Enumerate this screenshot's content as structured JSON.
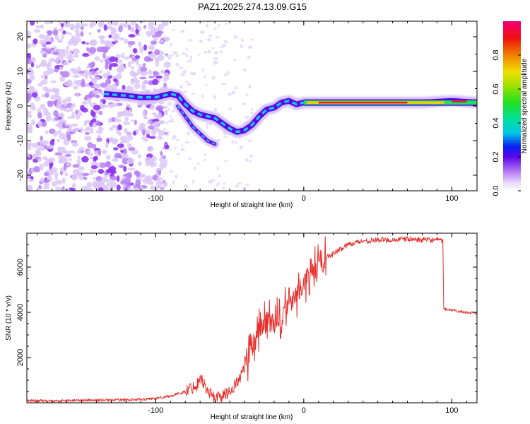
{
  "title": "PAZ1.2025.274.13.09.G15",
  "colors": {
    "snr_line": "#e8302c",
    "spectrogram_low": "#dcc8f8",
    "spectrogram_mid": "#7a16f0",
    "spectrogram_high": "#e8102a",
    "frame": "#000000"
  },
  "chart_data": [
    {
      "type": "heatmap",
      "name": "spectrogram",
      "xlabel": "Height of straight line (km)",
      "ylabel": "Frequency (Hz)",
      "xlim": [
        -187,
        117
      ],
      "ylim": [
        -24.5,
        24.5
      ],
      "xticks": [
        -100,
        0,
        100
      ],
      "xtick_labels": [
        "-100",
        "0",
        "100"
      ],
      "yticks": [
        -20,
        -10,
        0,
        10,
        20
      ],
      "ytick_labels": [
        "-20",
        "-10",
        "0",
        "10",
        "20"
      ],
      "ridge": {
        "x": [
          -135,
          -120,
          -110,
          -100,
          -90,
          -85,
          -80,
          -75,
          -70,
          -65,
          -60,
          -55,
          -50,
          -45,
          -40,
          -35,
          -30,
          -25,
          -20,
          -15,
          -10,
          -5,
          0,
          10,
          30,
          60,
          80,
          100,
          117
        ],
        "y": [
          3.5,
          3.0,
          2.5,
          2.5,
          3.5,
          3.0,
          0.5,
          -1.5,
          -2.5,
          -3.0,
          -3.5,
          -5.0,
          -6.5,
          -7.5,
          -7.0,
          -5.5,
          -3.0,
          -1.0,
          -0.5,
          1.0,
          1.5,
          0.5,
          1.0,
          1.0,
          1.0,
          1.0,
          1.0,
          1.5,
          1.0
        ]
      },
      "branch": {
        "x": [
          -85,
          -80,
          -75,
          -70,
          -65,
          -60
        ],
        "y": [
          0,
          -3,
          -6,
          -8,
          -10,
          -11
        ]
      },
      "colorbar": {
        "label": "Normalized spectral amplitude",
        "range": [
          0,
          1
        ],
        "ticks": [
          0.0,
          0.2,
          0.4,
          0.6,
          0.8
        ],
        "tick_labels": [
          "0.0",
          "0.2",
          "0.4",
          "0.6",
          "0.8"
        ]
      }
    },
    {
      "type": "line",
      "name": "snr",
      "xlabel": "Height of straight line (km)",
      "ylabel": "SNR (10 * v/v)",
      "xlim": [
        -187,
        117
      ],
      "ylim": [
        0,
        7500
      ],
      "xticks": [
        -100,
        0,
        100
      ],
      "xtick_labels": [
        "-100",
        "0",
        "100"
      ],
      "yticks": [
        2000,
        4000,
        6000
      ],
      "ytick_labels": [
        "2000",
        "4000",
        "6000"
      ],
      "series": [
        {
          "name": "SNR",
          "x": [
            -187,
            -170,
            -150,
            -130,
            -110,
            -100,
            -90,
            -80,
            -72,
            -70,
            -65,
            -60,
            -55,
            -50,
            -45,
            -40,
            -35,
            -30,
            -25,
            -20,
            -15,
            -10,
            -5,
            0,
            5,
            10,
            15,
            20,
            25,
            30,
            35,
            40,
            50,
            60,
            70,
            80,
            90,
            94,
            94.5,
            100,
            110,
            117
          ],
          "y": [
            100,
            80,
            110,
            120,
            140,
            200,
            300,
            500,
            800,
            1200,
            500,
            250,
            300,
            500,
            900,
            1500,
            2300,
            3200,
            3600,
            3500,
            3800,
            4300,
            4800,
            5300,
            5700,
            6100,
            6400,
            6600,
            6800,
            7000,
            7100,
            7150,
            7200,
            7200,
            7250,
            7200,
            7200,
            7150,
            4150,
            4100,
            4000,
            3950
          ]
        }
      ]
    }
  ]
}
